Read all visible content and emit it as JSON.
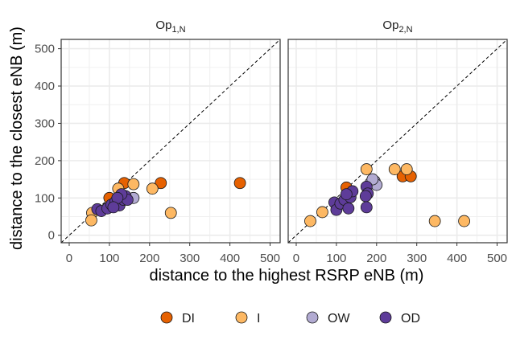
{
  "chart_data": {
    "type": "scatter",
    "xlabel": "distance to the highest RSRP eNB (m)",
    "ylabel": "distance to the closest eNB (m)",
    "xlim": [
      -20,
      525
    ],
    "ylim": [
      -20,
      525
    ],
    "xticks": [
      0,
      100,
      200,
      300,
      400,
      500
    ],
    "yticks": [
      0,
      100,
      200,
      300,
      400,
      500
    ],
    "grid": true,
    "reference_line": "y = x (dashed)",
    "legend": {
      "position": "bottom",
      "entries": [
        {
          "name": "DI",
          "color": "#e66101"
        },
        {
          "name": "I",
          "color": "#fdb863"
        },
        {
          "name": "OW",
          "color": "#b2abd2"
        },
        {
          "name": "OD",
          "color": "#5e3c99"
        }
      ]
    },
    "panels": [
      {
        "title": "Op",
        "title_sub": "1,N",
        "series": [
          {
            "name": "DI",
            "points": [
              [
                100,
                100
              ],
              [
                137,
                140
              ],
              [
                228,
                140
              ],
              [
                425,
                140
              ]
            ]
          },
          {
            "name": "I",
            "points": [
              [
                57,
                60
              ],
              [
                55,
                40
              ],
              [
                122,
                125
              ],
              [
                160,
                137
              ],
              [
                207,
                125
              ],
              [
                253,
                60
              ]
            ]
          },
          {
            "name": "OW",
            "points": [
              [
                120,
                90
              ],
              [
                130,
                95
              ],
              [
                160,
                100
              ],
              [
                140,
                97
              ]
            ]
          },
          {
            "name": "OD",
            "points": [
              [
                70,
                70
              ],
              [
                80,
                65
              ],
              [
                95,
                72
              ],
              [
                105,
                82
              ],
              [
                115,
                90
              ],
              [
                125,
                80
              ],
              [
                135,
                95
              ],
              [
                140,
                105
              ],
              [
                145,
                95
              ],
              [
                130,
                110
              ],
              [
                120,
                100
              ],
              [
                110,
                75
              ]
            ]
          }
        ]
      },
      {
        "title": "Op",
        "title_sub": "2,N",
        "series": [
          {
            "name": "DI",
            "points": [
              [
                125,
                128
              ],
              [
                265,
                158
              ],
              [
                285,
                158
              ]
            ]
          },
          {
            "name": "I",
            "points": [
              [
                35,
                38
              ],
              [
                65,
                62
              ],
              [
                175,
                177
              ],
              [
                245,
                177
              ],
              [
                275,
                177
              ],
              [
                345,
                38
              ],
              [
                418,
                38
              ]
            ]
          },
          {
            "name": "OW",
            "points": [
              [
                185,
                140
              ],
              [
                195,
                145
              ],
              [
                200,
                135
              ],
              [
                190,
                150
              ]
            ]
          },
          {
            "name": "OD",
            "points": [
              [
                95,
                88
              ],
              [
                100,
                68
              ],
              [
                110,
                85
              ],
              [
                120,
                95
              ],
              [
                130,
                72
              ],
              [
                135,
                102
              ],
              [
                140,
                118
              ],
              [
                125,
                110
              ],
              [
                175,
                130
              ],
              [
                178,
                112
              ],
              [
                173,
                105
              ],
              [
                175,
                75
              ]
            ]
          }
        ]
      }
    ]
  }
}
